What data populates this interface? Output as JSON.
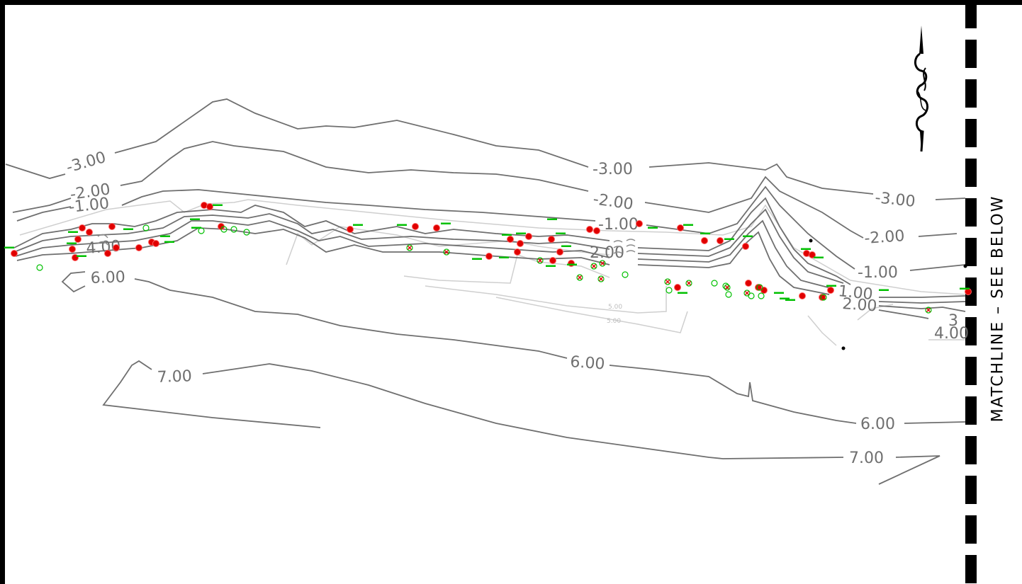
{
  "sheet": {
    "matchline_label": "MATCHLINE  –  SEE  BELOW"
  },
  "contour_labels": [
    "-3.00",
    "-2.00",
    "-1.00",
    "-3.00",
    "-2.00",
    "-1.00",
    "-3.00",
    "-2.00",
    "-1.00",
    "1.00",
    "2.00",
    "4.00",
    "6.00",
    "6.00",
    "6.00",
    "7.00",
    "7.00",
    "5.00",
    "5.00",
    "2.00",
    "3",
    "4.00"
  ],
  "colors": {
    "contour_major": "#6f6f6f",
    "contour_minor": "#c8c8c8",
    "tree_marker": "#e00000",
    "annotation": "#00c000",
    "frame": "#000000"
  },
  "icons": {
    "north_arrow": "north-arrow-icon"
  }
}
